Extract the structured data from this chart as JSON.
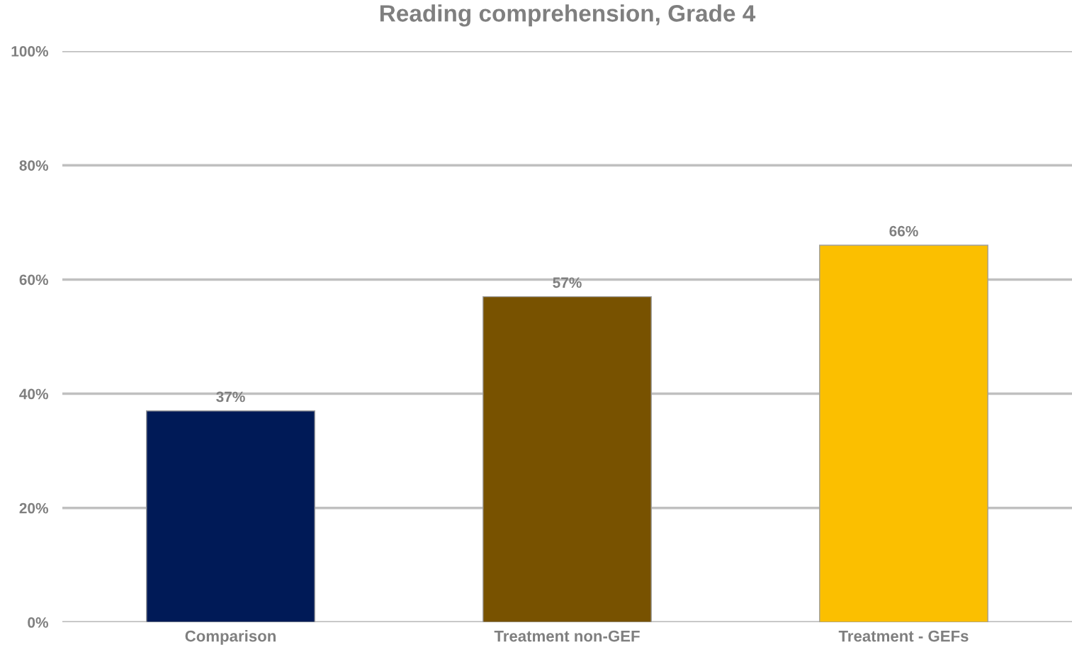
{
  "chart_data": {
    "type": "bar",
    "title": "Reading comprehension, Grade 4",
    "categories": [
      "Comparison",
      "Treatment non-GEF",
      "Treatment - GEFs"
    ],
    "values": [
      37,
      57,
      66
    ],
    "colors": [
      "#001a57",
      "#785200",
      "#fbbf00"
    ],
    "value_labels": [
      "37%",
      "57%",
      "66%"
    ],
    "ylim": [
      0,
      100
    ],
    "yticks": [
      {
        "value": 0,
        "label": "0%"
      },
      {
        "value": 20,
        "label": "20%"
      },
      {
        "value": 40,
        "label": "40%"
      },
      {
        "value": 60,
        "label": "60%"
      },
      {
        "value": 80,
        "label": "80%"
      },
      {
        "value": 100,
        "label": "100%"
      }
    ],
    "grid": "y",
    "legend": false
  }
}
